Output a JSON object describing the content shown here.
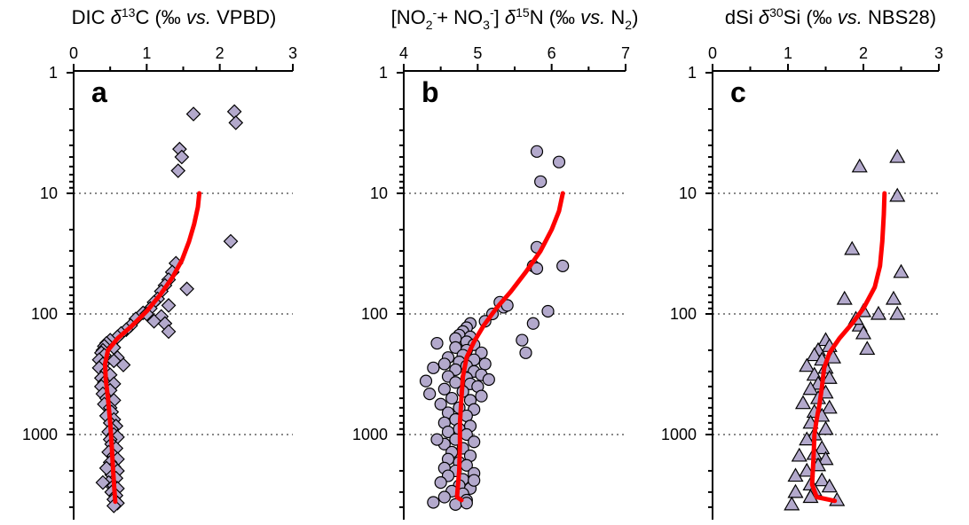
{
  "chart_data": [
    {
      "type": "scatter",
      "panel_label": "a",
      "x_title": {
        "pre": "DIC ",
        "delta": "δ",
        "sup": "13",
        "mid": "C (‰ ",
        "vs": "vs.",
        "post": " VPBD)",
        "sub1": "",
        "mid2": "",
        "sub2": "",
        "end": ""
      },
      "xlim": [
        0,
        3
      ],
      "xticks": [
        0,
        1,
        2,
        3
      ],
      "ylim": [
        1,
        4000
      ],
      "yscale": "log",
      "yticks": [
        1,
        10,
        100,
        1000
      ],
      "grid_y": [
        10,
        100,
        1000
      ],
      "marker": "diamond",
      "color": "#b3a9cc",
      "line_color": "#ff0000",
      "points": [
        [
          1.64,
          2.2
        ],
        [
          2.2,
          2.1
        ],
        [
          2.22,
          2.6
        ],
        [
          1.45,
          4.3
        ],
        [
          1.48,
          5.0
        ],
        [
          1.43,
          6.5
        ],
        [
          2.15,
          25
        ],
        [
          1.4,
          38
        ],
        [
          1.35,
          45
        ],
        [
          1.3,
          52
        ],
        [
          1.25,
          58
        ],
        [
          1.55,
          62
        ],
        [
          1.2,
          65
        ],
        [
          1.15,
          75
        ],
        [
          1.1,
          80
        ],
        [
          1.3,
          85
        ],
        [
          1.05,
          90
        ],
        [
          0.95,
          98
        ],
        [
          1.0,
          100
        ],
        [
          1.2,
          105
        ],
        [
          0.85,
          110
        ],
        [
          1.1,
          115
        ],
        [
          1.25,
          120
        ],
        [
          0.78,
          125
        ],
        [
          0.72,
          135
        ],
        [
          1.3,
          140
        ],
        [
          0.65,
          145
        ],
        [
          0.6,
          155
        ],
        [
          0.5,
          165
        ],
        [
          0.45,
          175
        ],
        [
          0.42,
          185
        ],
        [
          0.55,
          190
        ],
        [
          0.4,
          200
        ],
        [
          0.38,
          210
        ],
        [
          0.42,
          220
        ],
        [
          0.6,
          230
        ],
        [
          0.35,
          240
        ],
        [
          0.55,
          245
        ],
        [
          0.4,
          260
        ],
        [
          0.68,
          265
        ],
        [
          0.35,
          280
        ],
        [
          0.45,
          300
        ],
        [
          0.5,
          320
        ],
        [
          0.38,
          340
        ],
        [
          0.42,
          370
        ],
        [
          0.55,
          380
        ],
        [
          0.38,
          400
        ],
        [
          0.5,
          430
        ],
        [
          0.4,
          460
        ],
        [
          0.45,
          500
        ],
        [
          0.55,
          520
        ],
        [
          0.42,
          560
        ],
        [
          0.5,
          600
        ],
        [
          0.52,
          650
        ],
        [
          0.45,
          700
        ],
        [
          0.55,
          750
        ],
        [
          0.5,
          800
        ],
        [
          0.58,
          850
        ],
        [
          0.52,
          900
        ],
        [
          0.48,
          950
        ],
        [
          0.55,
          1000
        ],
        [
          0.6,
          1050
        ],
        [
          0.5,
          1100
        ],
        [
          0.52,
          1200
        ],
        [
          0.58,
          1300
        ],
        [
          0.48,
          1400
        ],
        [
          0.55,
          1500
        ],
        [
          0.6,
          1600
        ],
        [
          0.5,
          1700
        ],
        [
          0.55,
          1850
        ],
        [
          0.6,
          2000
        ],
        [
          0.52,
          2150
        ],
        [
          0.58,
          2300
        ],
        [
          0.48,
          2500
        ],
        [
          0.55,
          2650
        ],
        [
          0.6,
          2800
        ],
        [
          0.52,
          3000
        ],
        [
          0.58,
          3200
        ],
        [
          0.55,
          3450
        ],
        [
          0.6,
          3700
        ],
        [
          0.55,
          3900
        ],
        [
          0.4,
          2500
        ],
        [
          0.45,
          1900
        ]
      ],
      "line": [
        [
          1.72,
          10
        ],
        [
          1.7,
          13
        ],
        [
          1.65,
          18
        ],
        [
          1.58,
          25
        ],
        [
          1.48,
          36
        ],
        [
          1.35,
          50
        ],
        [
          1.18,
          70
        ],
        [
          1.0,
          95
        ],
        [
          0.8,
          125
        ],
        [
          0.6,
          160
        ],
        [
          0.47,
          200
        ],
        [
          0.43,
          260
        ],
        [
          0.44,
          350
        ],
        [
          0.47,
          500
        ],
        [
          0.5,
          800
        ],
        [
          0.52,
          1200
        ],
        [
          0.54,
          2000
        ],
        [
          0.56,
          3000
        ],
        [
          0.57,
          3600
        ]
      ]
    },
    {
      "type": "scatter",
      "panel_label": "b",
      "x_title": {
        "pre": "[NO",
        "delta": "",
        "sup": "-",
        "mid": "+ NO",
        "vs": "",
        "post": "",
        "sub1": "2",
        "mid2": "",
        "sub2": "3",
        "end": "-] δ15N (‰ vs. N2)"
      },
      "x_title_text": "[NO2-+ NO3-] δ15N (‰ vs. N2)",
      "xlim": [
        4,
        7
      ],
      "xticks": [
        4,
        5,
        6,
        7
      ],
      "ylim": [
        1,
        4000
      ],
      "yscale": "log",
      "yticks": [
        1,
        10,
        100,
        1000
      ],
      "grid_y": [
        10,
        100,
        1000
      ],
      "marker": "circle",
      "color": "#b3a9cc",
      "line_color": "#ff0000",
      "points": [
        [
          5.8,
          4.5
        ],
        [
          6.1,
          5.5
        ],
        [
          5.85,
          8.0
        ],
        [
          5.8,
          28
        ],
        [
          5.75,
          40
        ],
        [
          5.8,
          42
        ],
        [
          6.15,
          40
        ],
        [
          5.3,
          80
        ],
        [
          5.35,
          88
        ],
        [
          5.4,
          85
        ],
        [
          5.95,
          95
        ],
        [
          5.75,
          120
        ],
        [
          5.6,
          165
        ],
        [
          5.65,
          210
        ],
        [
          5.2,
          100
        ],
        [
          5.1,
          115
        ],
        [
          4.9,
          120
        ],
        [
          4.85,
          130
        ],
        [
          4.8,
          140
        ],
        [
          4.75,
          150
        ],
        [
          4.9,
          155
        ],
        [
          4.7,
          160
        ],
        [
          4.85,
          170
        ],
        [
          4.45,
          175
        ],
        [
          4.95,
          180
        ],
        [
          4.7,
          190
        ],
        [
          4.85,
          200
        ],
        [
          5.05,
          210
        ],
        [
          4.8,
          220
        ],
        [
          4.6,
          230
        ],
        [
          4.95,
          240
        ],
        [
          4.75,
          250
        ],
        [
          4.55,
          260
        ],
        [
          5.1,
          260
        ],
        [
          4.85,
          270
        ],
        [
          4.4,
          280
        ],
        [
          4.7,
          290
        ],
        [
          4.95,
          300
        ],
        [
          5.05,
          320
        ],
        [
          4.6,
          330
        ],
        [
          4.85,
          340
        ],
        [
          5.15,
          350
        ],
        [
          4.3,
          360
        ],
        [
          4.7,
          370
        ],
        [
          4.9,
          380
        ],
        [
          5.0,
          400
        ],
        [
          4.55,
          420
        ],
        [
          4.8,
          440
        ],
        [
          4.35,
          460
        ],
        [
          5.05,
          480
        ],
        [
          4.65,
          500
        ],
        [
          4.9,
          520
        ],
        [
          4.5,
          560
        ],
        [
          4.75,
          600
        ],
        [
          4.95,
          620
        ],
        [
          4.6,
          660
        ],
        [
          4.85,
          700
        ],
        [
          4.7,
          750
        ],
        [
          4.55,
          800
        ],
        [
          4.9,
          850
        ],
        [
          4.75,
          900
        ],
        [
          4.6,
          950
        ],
        [
          4.85,
          1000
        ],
        [
          4.7,
          1100
        ],
        [
          4.95,
          1150
        ],
        [
          4.55,
          1200
        ],
        [
          4.8,
          1300
        ],
        [
          4.65,
          1400
        ],
        [
          4.9,
          1500
        ],
        [
          4.6,
          1600
        ],
        [
          4.75,
          1700
        ],
        [
          4.85,
          1800
        ],
        [
          4.55,
          1900
        ],
        [
          4.7,
          2000
        ],
        [
          4.95,
          2100
        ],
        [
          4.6,
          2200
        ],
        [
          4.8,
          2350
        ],
        [
          4.5,
          2500
        ],
        [
          4.75,
          2650
        ],
        [
          4.9,
          2800
        ],
        [
          4.65,
          2950
        ],
        [
          4.8,
          3100
        ],
        [
          4.55,
          3300
        ],
        [
          4.85,
          3500
        ],
        [
          4.4,
          3650
        ],
        [
          4.7,
          3800
        ],
        [
          4.85,
          3700
        ],
        [
          4.95,
          2400
        ],
        [
          4.45,
          1100
        ]
      ],
      "line": [
        [
          6.15,
          10
        ],
        [
          6.1,
          14
        ],
        [
          6.0,
          20
        ],
        [
          5.85,
          30
        ],
        [
          5.65,
          45
        ],
        [
          5.45,
          65
        ],
        [
          5.25,
          90
        ],
        [
          5.08,
          125
        ],
        [
          4.95,
          170
        ],
        [
          4.85,
          230
        ],
        [
          4.8,
          330
        ],
        [
          4.78,
          500
        ],
        [
          4.76,
          800
        ],
        [
          4.76,
          1200
        ],
        [
          4.75,
          2000
        ],
        [
          4.73,
          2800
        ],
        [
          4.72,
          3300
        ],
        [
          4.78,
          3500
        ]
      ]
    },
    {
      "type": "scatter",
      "panel_label": "c",
      "x_title": {
        "pre": "dSi ",
        "delta": "δ",
        "sup": "30",
        "mid": "Si (‰ ",
        "vs": "vs.",
        "post": " NBS28)",
        "sub1": "",
        "mid2": "",
        "sub2": "",
        "end": ""
      },
      "xlim": [
        0,
        3
      ],
      "xticks": [
        0,
        1,
        2,
        3
      ],
      "ylim": [
        1,
        4000
      ],
      "yscale": "log",
      "yticks": [
        1,
        10,
        100,
        1000
      ],
      "grid_y": [
        10,
        100,
        1000
      ],
      "marker": "triangle",
      "color": "#b3a9cc",
      "line_color": "#ff0000",
      "points": [
        [
          2.45,
          5.0
        ],
        [
          1.95,
          6.0
        ],
        [
          2.45,
          10.5
        ],
        [
          1.85,
          29
        ],
        [
          2.5,
          45
        ],
        [
          2.4,
          75
        ],
        [
          2.45,
          100
        ],
        [
          2.2,
          100
        ],
        [
          1.75,
          75
        ],
        [
          2.0,
          95
        ],
        [
          1.95,
          125
        ],
        [
          2.0,
          145
        ],
        [
          2.05,
          195
        ],
        [
          1.9,
          110
        ],
        [
          1.5,
          165
        ],
        [
          1.55,
          185
        ],
        [
          1.4,
          200
        ],
        [
          1.35,
          220
        ],
        [
          1.6,
          230
        ],
        [
          1.45,
          240
        ],
        [
          1.25,
          270
        ],
        [
          1.5,
          280
        ],
        [
          1.35,
          320
        ],
        [
          1.55,
          340
        ],
        [
          1.4,
          380
        ],
        [
          1.3,
          420
        ],
        [
          1.5,
          450
        ],
        [
          1.4,
          500
        ],
        [
          1.2,
          550
        ],
        [
          1.55,
          600
        ],
        [
          1.35,
          650
        ],
        [
          1.45,
          700
        ],
        [
          1.3,
          800
        ],
        [
          1.5,
          900
        ],
        [
          1.35,
          1000
        ],
        [
          1.25,
          1100
        ],
        [
          1.45,
          1300
        ],
        [
          1.35,
          1450
        ],
        [
          1.15,
          1500
        ],
        [
          1.5,
          1600
        ],
        [
          1.4,
          1800
        ],
        [
          1.25,
          2000
        ],
        [
          1.1,
          2200
        ],
        [
          1.45,
          2400
        ],
        [
          1.3,
          2600
        ],
        [
          1.55,
          2700
        ],
        [
          1.35,
          2900
        ],
        [
          1.1,
          3000
        ],
        [
          1.65,
          3500
        ],
        [
          1.05,
          3800
        ],
        [
          1.3,
          3300
        ]
      ],
      "line": [
        [
          2.28,
          10
        ],
        [
          2.27,
          15
        ],
        [
          2.25,
          25
        ],
        [
          2.22,
          40
        ],
        [
          2.15,
          60
        ],
        [
          2.0,
          90
        ],
        [
          1.85,
          120
        ],
        [
          1.68,
          160
        ],
        [
          1.55,
          210
        ],
        [
          1.48,
          280
        ],
        [
          1.45,
          400
        ],
        [
          1.42,
          550
        ],
        [
          1.38,
          750
        ],
        [
          1.35,
          1000
        ],
        [
          1.34,
          1500
        ],
        [
          1.33,
          2000
        ],
        [
          1.32,
          2600
        ],
        [
          1.38,
          3300
        ],
        [
          1.62,
          3550
        ]
      ]
    }
  ]
}
